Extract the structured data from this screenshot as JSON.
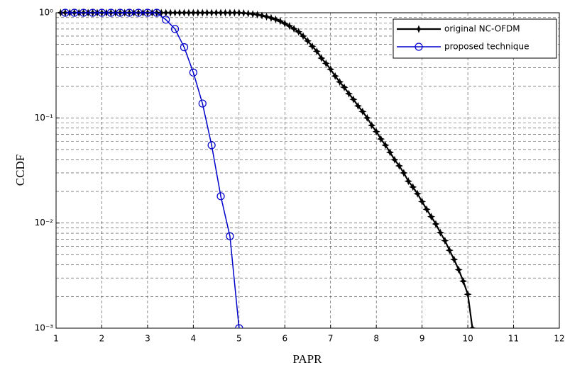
{
  "chart_data": {
    "type": "line",
    "xlabel": "PAPR",
    "ylabel": "CCDF",
    "yscale": "log",
    "grid": true,
    "legend": "upper right",
    "xlim": [
      1,
      12
    ],
    "ylim": [
      0.001,
      1
    ],
    "xticks": [
      1,
      2,
      3,
      4,
      5,
      6,
      7,
      8,
      9,
      10,
      11,
      12
    ],
    "yticks": [
      {
        "value": 0.001,
        "label": "10⁻³"
      },
      {
        "value": 0.01,
        "label": "10⁻²"
      },
      {
        "value": 0.1,
        "label": "10⁻¹"
      },
      {
        "value": 1,
        "label": "10⁰"
      }
    ],
    "yminorticks": [
      0.002,
      0.003,
      0.004,
      0.005,
      0.006,
      0.007,
      0.008,
      0.009,
      0.02,
      0.03,
      0.04,
      0.05,
      0.06,
      0.07,
      0.08,
      0.09,
      0.2,
      0.3,
      0.4,
      0.5,
      0.6,
      0.7,
      0.8,
      0.9
    ],
    "series": [
      {
        "name": "original NC-OFDM",
        "color": "#000000",
        "marker": "star",
        "x": [
          1.1,
          1.2,
          1.3,
          1.4,
          1.5,
          1.6,
          1.7,
          1.8,
          1.9,
          2.0,
          2.1,
          2.2,
          2.3,
          2.4,
          2.5,
          2.6,
          2.7,
          2.8,
          2.9,
          3.0,
          3.1,
          3.2,
          3.3,
          3.4,
          3.5,
          3.6,
          3.7,
          3.8,
          3.9,
          4.0,
          4.1,
          4.2,
          4.3,
          4.4,
          4.5,
          4.6,
          4.7,
          4.8,
          4.9,
          5.0,
          5.1,
          5.2,
          5.3,
          5.4,
          5.5,
          5.6,
          5.7,
          5.8,
          5.9,
          6.0,
          6.1,
          6.2,
          6.3,
          6.4,
          6.5,
          6.6,
          6.7,
          6.8,
          6.9,
          7.0,
          7.1,
          7.2,
          7.3,
          7.4,
          7.5,
          7.6,
          7.7,
          7.8,
          7.9,
          8.0,
          8.1,
          8.2,
          8.3,
          8.4,
          8.5,
          8.6,
          8.7,
          8.8,
          8.9,
          9.0,
          9.1,
          9.2,
          9.3,
          9.4,
          9.5,
          9.6,
          9.7,
          9.8,
          9.9,
          10.0,
          10.1
        ],
        "values": [
          1,
          1,
          1,
          1,
          1,
          1,
          1,
          1,
          1,
          1,
          1,
          1,
          1,
          1,
          1,
          1,
          1,
          1,
          1,
          1,
          1,
          1,
          1,
          1,
          1,
          1,
          1,
          1,
          1,
          1,
          1,
          1,
          1,
          1,
          1,
          1,
          1,
          1,
          1,
          1,
          0.993,
          0.984,
          0.973,
          0.959,
          0.94,
          0.918,
          0.893,
          0.865,
          0.832,
          0.79,
          0.75,
          0.705,
          0.66,
          0.6,
          0.54,
          0.48,
          0.43,
          0.37,
          0.33,
          0.29,
          0.25,
          0.22,
          0.195,
          0.17,
          0.15,
          0.13,
          0.115,
          0.1,
          0.085,
          0.074,
          0.063,
          0.055,
          0.047,
          0.04,
          0.035,
          0.03,
          0.025,
          0.022,
          0.019,
          0.016,
          0.0135,
          0.0115,
          0.0098,
          0.0081,
          0.0068,
          0.0055,
          0.0045,
          0.0036,
          0.0028,
          0.0021,
          0.001
        ]
      },
      {
        "name": "proposed technique",
        "color": "#0000cc",
        "marker": "circle",
        "x": [
          1.2,
          1.4,
          1.6,
          1.8,
          2.0,
          2.2,
          2.4,
          2.6,
          2.8,
          3.0,
          3.2,
          3.4,
          3.6,
          3.8,
          4.0,
          4.2,
          4.4,
          4.6,
          4.8,
          5.0
        ],
        "values": [
          1,
          1,
          1,
          1,
          1,
          1,
          1,
          1,
          1,
          1,
          1,
          0.86,
          0.7,
          0.47,
          0.27,
          0.137,
          0.055,
          0.018,
          0.0075,
          0.001
        ]
      }
    ]
  }
}
